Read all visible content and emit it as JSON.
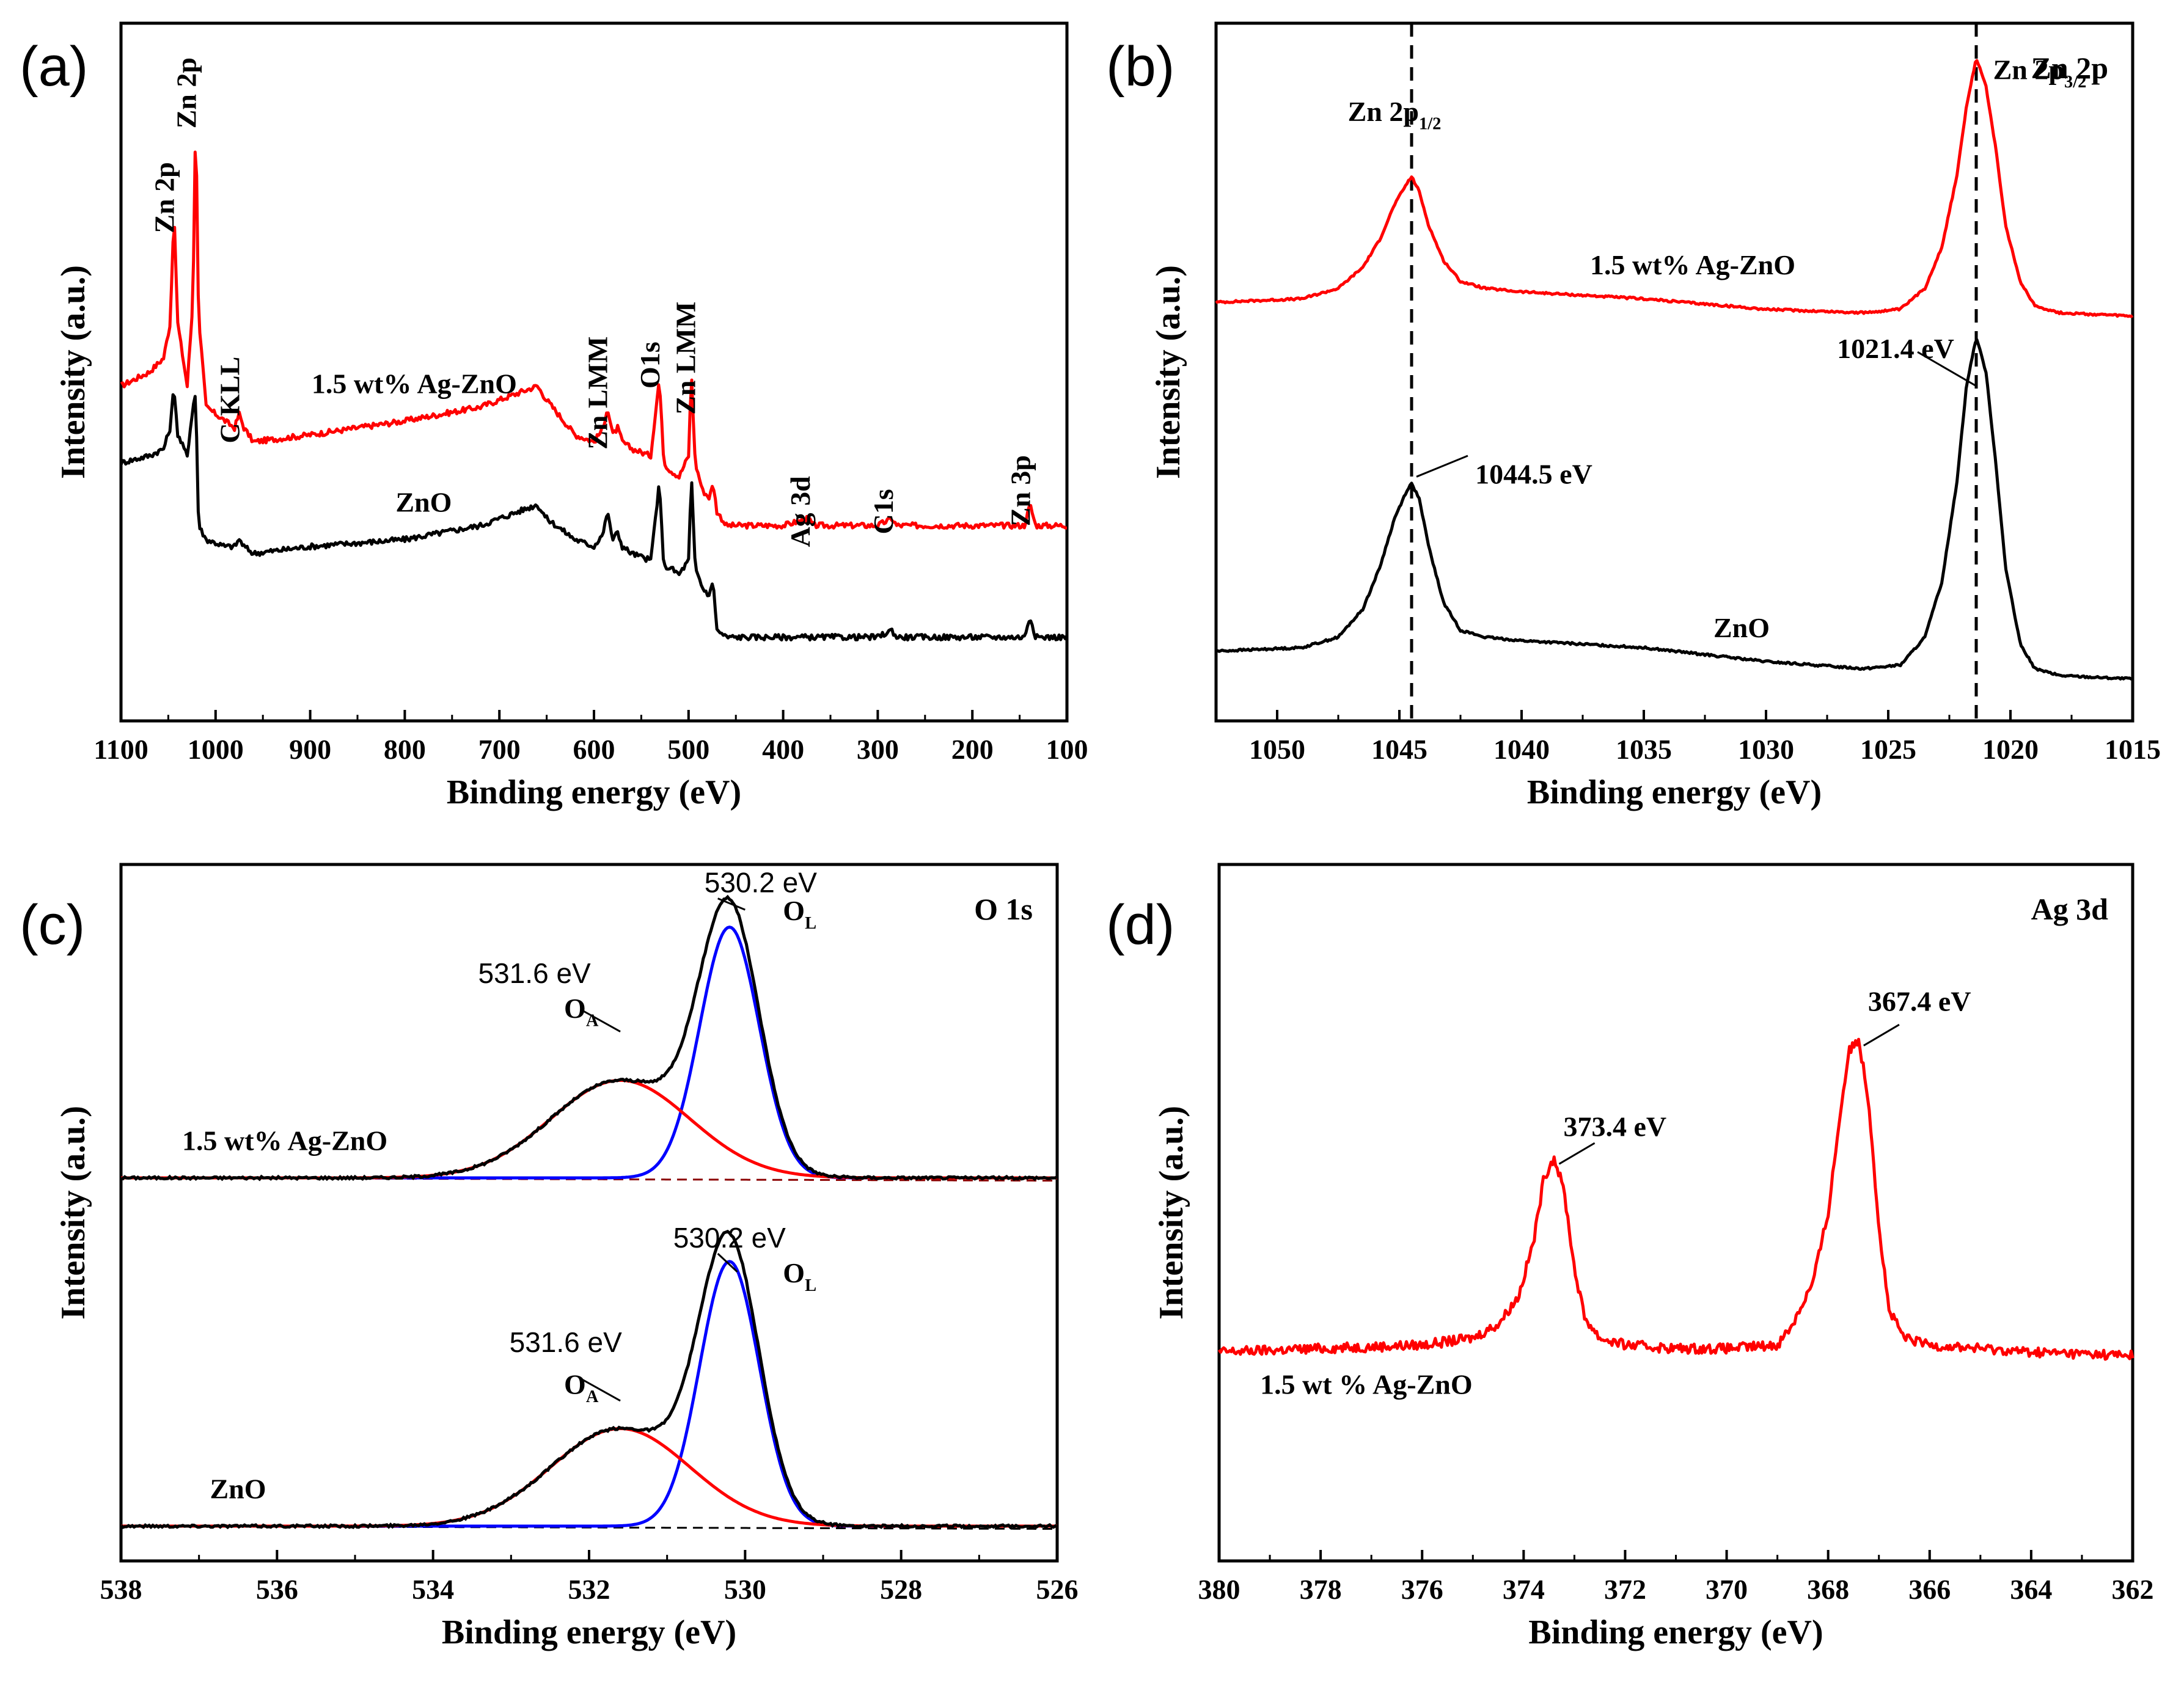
{
  "figure": {
    "panels_count": 4
  },
  "chart_data": [
    {
      "id": "a",
      "type": "line",
      "panel_label": "(a)",
      "title": "",
      "xlabel": "Binding energy (eV)",
      "ylabel": "Intensity (a.u.)",
      "xlim": [
        1100,
        100
      ],
      "ylim": [
        0,
        100
      ],
      "x_ticks": [
        "1100",
        "1000",
        "900",
        "800",
        "700",
        "600",
        "500",
        "400",
        "300",
        "200",
        "100"
      ],
      "x_tick_values": [
        1100,
        1000,
        900,
        800,
        700,
        600,
        500,
        400,
        300,
        200,
        100
      ],
      "series": [
        {
          "name": "1.5 wt% Ag-ZnO",
          "color": "#ff0000",
          "x": [
            1100,
            1070,
            1055,
            1048,
            1044,
            1040,
            1030,
            1024,
            1021,
            1018,
            1010,
            990,
            980,
            975,
            970,
            960,
            900,
            800,
            720,
            700,
            680,
            660,
            650,
            620,
            600,
            590,
            586,
            580,
            575,
            570,
            560,
            540,
            531,
            526,
            520,
            510,
            500,
            497,
            493,
            485,
            478,
            474,
            470,
            460,
            400,
            373,
            368,
            300,
            285,
            280,
            200,
            145,
            139,
            133,
            110,
            100
          ],
          "y": [
            48,
            50,
            52,
            57,
            73,
            57,
            48,
            60,
            88,
            58,
            45,
            43,
            42,
            44,
            42,
            40,
            41,
            43,
            45,
            46,
            47,
            48,
            46,
            41,
            40,
            42,
            45,
            41,
            42,
            40,
            39,
            38,
            49,
            37,
            36,
            35,
            38,
            50,
            37,
            33,
            32,
            34,
            30,
            28,
            28,
            29,
            28,
            28,
            29,
            28,
            28,
            28,
            31,
            28,
            28,
            28
          ]
        },
        {
          "name": "ZnO",
          "color": "#000000",
          "x": [
            1100,
            1070,
            1055,
            1048,
            1044,
            1040,
            1030,
            1024,
            1021,
            1018,
            1010,
            990,
            980,
            975,
            970,
            960,
            900,
            800,
            720,
            700,
            680,
            660,
            650,
            620,
            600,
            590,
            586,
            580,
            575,
            570,
            560,
            540,
            531,
            526,
            520,
            510,
            500,
            497,
            493,
            485,
            478,
            474,
            470,
            460,
            400,
            300,
            285,
            280,
            200,
            145,
            139,
            133,
            110,
            100
          ],
          "y": [
            37,
            38,
            39,
            42,
            48,
            41,
            38,
            45,
            47,
            28,
            26,
            25,
            25,
            26,
            25,
            24,
            25,
            26,
            28,
            29,
            30,
            31,
            29,
            26,
            25,
            27,
            30,
            26,
            27,
            25,
            24,
            23,
            34,
            22,
            22,
            21,
            23,
            35,
            22,
            19,
            18,
            20,
            13,
            12,
            12,
            12,
            13,
            12,
            12,
            12,
            15,
            12,
            12,
            12
          ]
        }
      ],
      "annotations": [
        {
          "text": "Zn 2p",
          "x": 1044,
          "y": 75,
          "rotate": true
        },
        {
          "text": "Zn 2p",
          "x": 1021,
          "y": 90,
          "rotate": true
        },
        {
          "text": "C KLL",
          "x": 975,
          "y": 46,
          "rotate": true
        },
        {
          "text": "Zn LMM",
          "x": 586,
          "y": 47,
          "rotate": true
        },
        {
          "text": "O1s",
          "x": 531,
          "y": 51,
          "rotate": true
        },
        {
          "text": "Zn LMM",
          "x": 493,
          "y": 52,
          "rotate": true
        },
        {
          "text": "Ag 3d",
          "x": 372,
          "y": 30,
          "rotate": true
        },
        {
          "text": "C1s",
          "x": 284,
          "y": 30,
          "rotate": true
        },
        {
          "text": "Zn 3p",
          "x": 139,
          "y": 33,
          "rotate": true
        },
        {
          "text": "1.5 wt% Ag-ZnO",
          "x": 790,
          "y": 47,
          "rotate": false
        },
        {
          "text": "ZnO",
          "x": 780,
          "y": 30,
          "rotate": false
        }
      ]
    },
    {
      "id": "b",
      "type": "line",
      "panel_label": "(b)",
      "title": "Zn 2p",
      "xlabel": "Binding energy (eV)",
      "ylabel": "Intensity (a.u.)",
      "xlim": [
        1052.5,
        1015
      ],
      "ylim": [
        0,
        100
      ],
      "x_ticks": [
        "1050",
        "1045",
        "1040",
        "1035",
        "1030",
        "1025",
        "1020",
        "1015"
      ],
      "x_tick_values": [
        1050,
        1045,
        1040,
        1035,
        1030,
        1025,
        1020,
        1015
      ],
      "reference_lines": [
        1044.5,
        1021.4
      ],
      "series": [
        {
          "name": "1.5 wt% Ag-ZnO",
          "color": "#ff0000",
          "x": [
            1052.5,
            1049,
            1047.5,
            1046.5,
            1045.8,
            1045.2,
            1044.7,
            1044.5,
            1044.2,
            1043.8,
            1043.2,
            1042.5,
            1041.5,
            1040,
            1035,
            1030,
            1026,
            1024.5,
            1023.5,
            1022.8,
            1022.2,
            1021.8,
            1021.4,
            1021,
            1020.6,
            1020.2,
            1019.6,
            1019,
            1018,
            1015
          ],
          "y": [
            60,
            60.5,
            62,
            65,
            69,
            74,
            77,
            78,
            76,
            71,
            66,
            63,
            62,
            61.5,
            60.5,
            59,
            58.5,
            59,
            62,
            68,
            78,
            88,
            95,
            91,
            82,
            71,
            63,
            59.5,
            58.5,
            58
          ]
        },
        {
          "name": "ZnO",
          "color": "#000000",
          "x": [
            1052.5,
            1049,
            1047.5,
            1046.5,
            1045.8,
            1045.2,
            1044.7,
            1044.5,
            1044.2,
            1043.8,
            1043.2,
            1042.5,
            1041.5,
            1040,
            1035,
            1030,
            1026,
            1024.5,
            1023.5,
            1022.8,
            1022.2,
            1021.8,
            1021.4,
            1021,
            1020.6,
            1020.2,
            1019.6,
            1019,
            1018,
            1015
          ],
          "y": [
            10,
            10.5,
            12,
            16,
            22,
            29,
            33,
            34,
            32,
            25,
            17,
            13,
            12,
            11.5,
            10.5,
            8.5,
            7.5,
            8,
            12,
            20,
            34,
            48,
            55,
            50,
            37,
            22,
            11,
            7.5,
            6.5,
            6
          ]
        }
      ],
      "annotations": [
        {
          "text": "Zn 2p",
          "sub": "1/2",
          "x": 1045.2,
          "y": 86
        },
        {
          "text": "Zn 2p",
          "sub": "3/2",
          "x": 1018.8,
          "y": 92
        },
        {
          "text": "1.5 wt% Ag-ZnO",
          "x": 1033,
          "y": 64
        },
        {
          "text": "ZnO",
          "x": 1031,
          "y": 12
        },
        {
          "text": "1021.4 eV",
          "x": 1024.7,
          "y": 52
        },
        {
          "text": "1044.5 eV",
          "x": 1039.5,
          "y": 34
        }
      ]
    },
    {
      "id": "c",
      "type": "line",
      "panel_label": "(c)",
      "title": "O 1s",
      "xlabel": "Binding energy (eV)",
      "ylabel": "Intensity (a.u.)",
      "xlim": [
        538,
        526
      ],
      "ylim": [
        0,
        100
      ],
      "x_ticks": [
        "538",
        "536",
        "534",
        "532",
        "530",
        "528",
        "526"
      ],
      "x_tick_values": [
        538,
        536,
        534,
        532,
        530,
        528,
        526
      ],
      "fit_components": {
        "O_L": {
          "center": 530.2,
          "fwhm": 0.9
        },
        "O_A": {
          "center": 531.6,
          "fwhm": 2.1
        }
      },
      "series": [
        {
          "name": "1.5 wt% Ag-ZnO",
          "role": "measured",
          "color": "#000000",
          "baseline": 55,
          "O_L_height": 36,
          "O_A_height": 14
        },
        {
          "name": "ZnO",
          "role": "measured",
          "color": "#000000",
          "baseline": 5,
          "O_L_height": 38,
          "O_A_height": 14
        }
      ],
      "annotations": [
        {
          "text": "530.2 eV",
          "x": 529.8,
          "y": 96
        },
        {
          "text": "O",
          "sub": "L",
          "x": 529.3,
          "y": 92
        },
        {
          "text": "531.6 eV",
          "x": 532.7,
          "y": 83
        },
        {
          "text": "O",
          "sub": "A",
          "x": 532.1,
          "y": 78
        },
        {
          "text": "1.5 wt% Ag-ZnO",
          "x": 535.9,
          "y": 59
        },
        {
          "text": "530.2 eV",
          "x": 530.2,
          "y": 45
        },
        {
          "text": "O",
          "sub": "L",
          "x": 529.3,
          "y": 40
        },
        {
          "text": "531.6 eV",
          "x": 532.3,
          "y": 30
        },
        {
          "text": "O",
          "sub": "A",
          "x": 532.1,
          "y": 24
        },
        {
          "text": "ZnO",
          "x": 536.5,
          "y": 9
        }
      ]
    },
    {
      "id": "d",
      "type": "line",
      "panel_label": "(d)",
      "title": "Ag 3d",
      "xlabel": "Binding energy (eV)",
      "ylabel": "Intensity (a.u.)",
      "xlim": [
        380,
        362
      ],
      "ylim": [
        0,
        100
      ],
      "x_ticks": [
        "380",
        "378",
        "376",
        "374",
        "372",
        "370",
        "368",
        "366",
        "364",
        "362"
      ],
      "x_tick_values": [
        380,
        378,
        376,
        374,
        372,
        370,
        368,
        366,
        364,
        362
      ],
      "series": [
        {
          "name": "1.5 wt % Ag-ZnO",
          "color": "#ff0000",
          "x": [
            380,
            378,
            376,
            375,
            374.5,
            374.1,
            373.8,
            373.6,
            373.4,
            373.2,
            373,
            372.8,
            372.5,
            372,
            371,
            370,
            369,
            368.7,
            368.3,
            368,
            367.8,
            367.6,
            367.4,
            367.2,
            367,
            366.8,
            366.5,
            366,
            365,
            364,
            362
          ],
          "y": [
            30,
            30.5,
            31,
            32,
            34,
            38,
            46,
            55,
            58,
            53,
            42,
            35,
            32,
            31,
            30.5,
            30.5,
            31,
            34,
            40,
            50,
            62,
            73,
            75,
            66,
            48,
            36,
            32,
            31,
            30.5,
            30,
            29.5
          ]
        }
      ],
      "annotations": [
        {
          "text": "367.4 eV",
          "x": 366.2,
          "y": 79
        },
        {
          "text": "373.4 eV",
          "x": 372.2,
          "y": 61
        },
        {
          "text": "1.5 wt % Ag-ZnO",
          "x": 377.1,
          "y": 24
        }
      ]
    }
  ]
}
